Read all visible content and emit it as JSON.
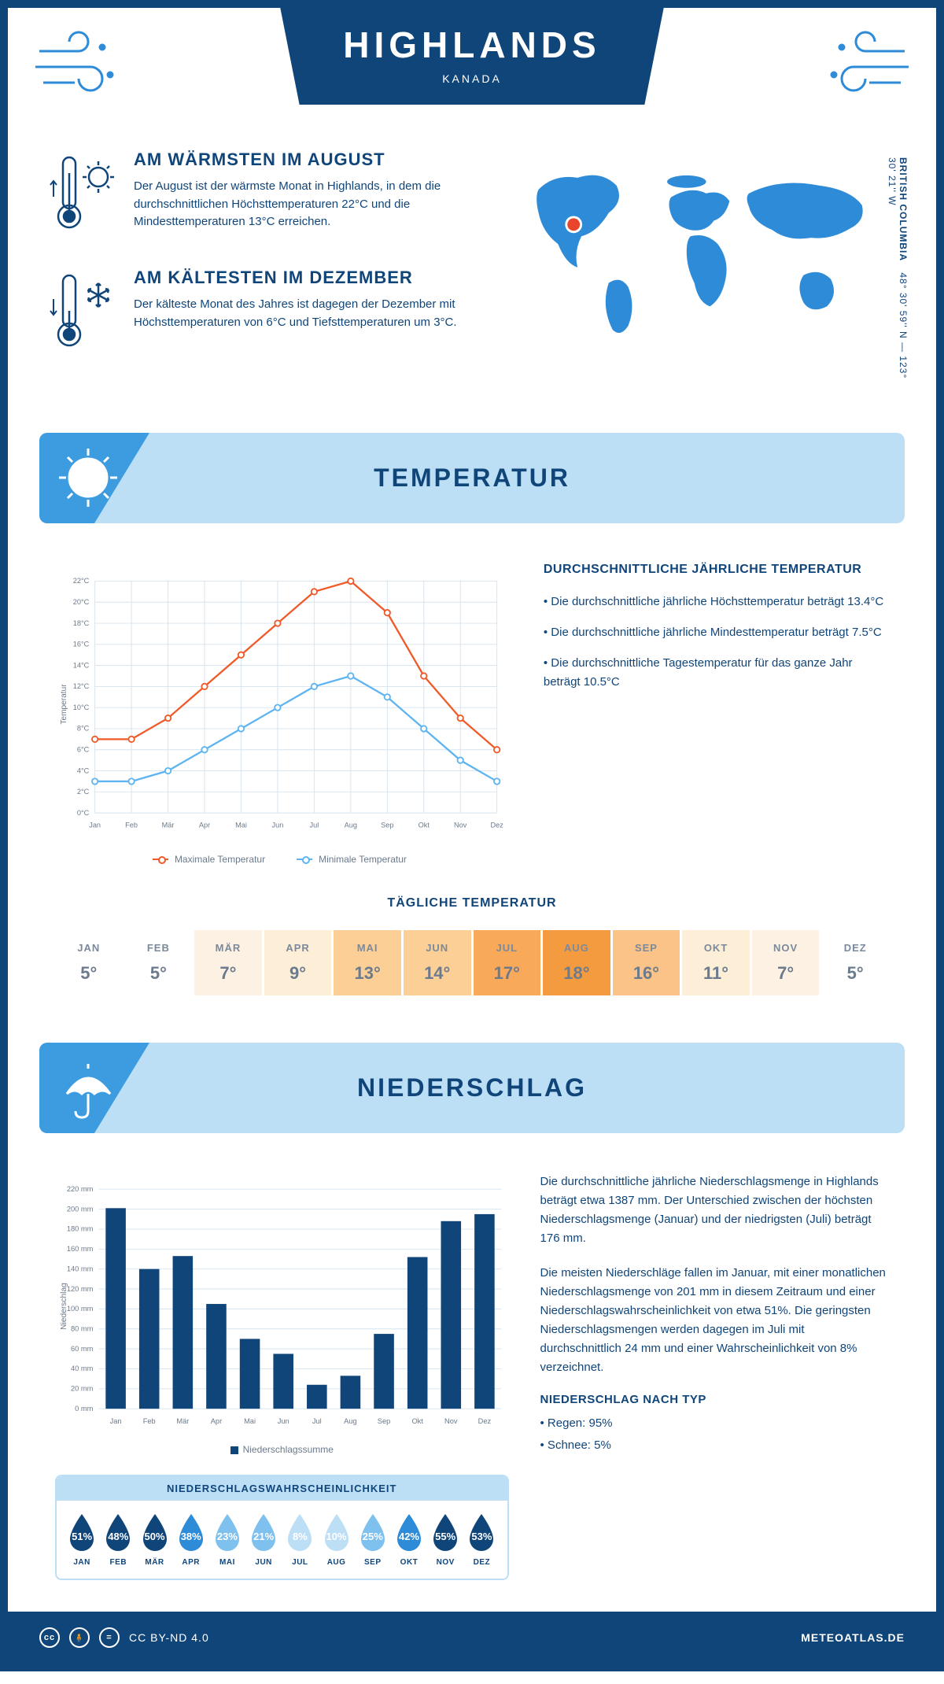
{
  "header": {
    "title": "HIGHLANDS",
    "subtitle": "KANADA"
  },
  "coords": {
    "region": "BRITISH COLUMBIA",
    "lat": "48° 30' 59'' N",
    "lon": "123° 30' 21'' W"
  },
  "facts": {
    "warm": {
      "title": "AM WÄRMSTEN IM AUGUST",
      "text": "Der August ist der wärmste Monat in Highlands, in dem die durchschnittlichen Höchsttemperaturen 22°C und die Mindesttemperaturen 13°C erreichen."
    },
    "cold": {
      "title": "AM KÄLTESTEN IM DEZEMBER",
      "text": "Der kälteste Monat des Jahres ist dagegen der Dezember mit Höchsttemperaturen von 6°C und Tiefsttemperaturen um 3°C."
    }
  },
  "months": [
    "Jan",
    "Feb",
    "Mär",
    "Apr",
    "Mai",
    "Jun",
    "Jul",
    "Aug",
    "Sep",
    "Okt",
    "Nov",
    "Dez"
  ],
  "months_upper": [
    "JAN",
    "FEB",
    "MÄR",
    "APR",
    "MAI",
    "JUN",
    "JUL",
    "AUG",
    "SEP",
    "OKT",
    "NOV",
    "DEZ"
  ],
  "temp_section": {
    "title": "TEMPERATUR",
    "chart": {
      "y_title": "Temperatur",
      "y_ticks": [
        "0°C",
        "2°C",
        "4°C",
        "6°C",
        "8°C",
        "10°C",
        "12°C",
        "14°C",
        "16°C",
        "18°C",
        "20°C",
        "22°C"
      ],
      "y_min": 0,
      "y_max": 22,
      "max_series": {
        "label": "Maximale Temperatur",
        "color": "#f05a28",
        "values": [
          7,
          7,
          9,
          12,
          15,
          18,
          21,
          22,
          19,
          13,
          9,
          6
        ]
      },
      "min_series": {
        "label": "Minimale Temperatur",
        "color": "#5eb4f0",
        "values": [
          3,
          3,
          4,
          6,
          8,
          10,
          12,
          13,
          11,
          8,
          5,
          3
        ]
      },
      "grid_color": "#d5e3ef",
      "bg": "#ffffff"
    },
    "avg": {
      "title": "DURCHSCHNITTLICHE JÄHRLICHE TEMPERATUR",
      "b1": "• Die durchschnittliche jährliche Höchsttemperatur beträgt 13.4°C",
      "b2": "• Die durchschnittliche jährliche Mindesttemperatur beträgt 7.5°C",
      "b3": "• Die durchschnittliche Tagestemperatur für das ganze Jahr beträgt 10.5°C"
    },
    "daily": {
      "title": "TÄGLICHE TEMPERATUR",
      "values": [
        "5°",
        "5°",
        "7°",
        "9°",
        "13°",
        "14°",
        "17°",
        "18°",
        "16°",
        "11°",
        "7°",
        "5°"
      ],
      "colors": [
        "#ffffff",
        "#ffffff",
        "#fdf1e3",
        "#fdeed8",
        "#fccf97",
        "#fccf97",
        "#f8a95a",
        "#f59b3f",
        "#fbc387",
        "#fdeed8",
        "#fdf1e3",
        "#ffffff"
      ]
    }
  },
  "precip_section": {
    "title": "NIEDERSCHLAG",
    "chart": {
      "y_title": "Niederschlag",
      "y_ticks": [
        0,
        20,
        40,
        60,
        80,
        100,
        120,
        140,
        160,
        180,
        200,
        220
      ],
      "y_max": 220,
      "values": [
        201,
        140,
        153,
        105,
        70,
        55,
        24,
        33,
        75,
        152,
        188,
        195
      ],
      "bar_color": "#10457a",
      "grid_color": "#d5e3ef",
      "legend": "Niederschlagssumme"
    },
    "text": {
      "p1": "Die durchschnittliche jährliche Niederschlagsmenge in Highlands beträgt etwa 1387 mm. Der Unterschied zwischen der höchsten Niederschlagsmenge (Januar) und der niedrigsten (Juli) beträgt 176 mm.",
      "p2": "Die meisten Niederschläge fallen im Januar, mit einer monatlichen Niederschlagsmenge von 201 mm in diesem Zeitraum und einer Niederschlagswahrscheinlichkeit von etwa 51%. Die geringsten Niederschlagsmengen werden dagegen im Juli mit durchschnittlich 24 mm und einer Wahrscheinlichkeit von 8% verzeichnet.",
      "type_title": "NIEDERSCHLAG NACH TYP",
      "type_1": "• Regen: 95%",
      "type_2": "• Schnee: 5%"
    },
    "prob": {
      "title": "NIEDERSCHLAGSWAHRSCHEINLICHKEIT",
      "values": [
        "51%",
        "48%",
        "50%",
        "38%",
        "23%",
        "21%",
        "8%",
        "10%",
        "25%",
        "42%",
        "55%",
        "53%"
      ],
      "colors": [
        "#10457a",
        "#10457a",
        "#10457a",
        "#2e8bd8",
        "#7ec0ee",
        "#7ec0ee",
        "#bcdff6",
        "#bcdff6",
        "#7ec0ee",
        "#2e8bd8",
        "#10457a",
        "#10457a"
      ]
    }
  },
  "footer": {
    "license": "CC BY-ND 4.0",
    "site": "METEOATLAS.DE"
  }
}
